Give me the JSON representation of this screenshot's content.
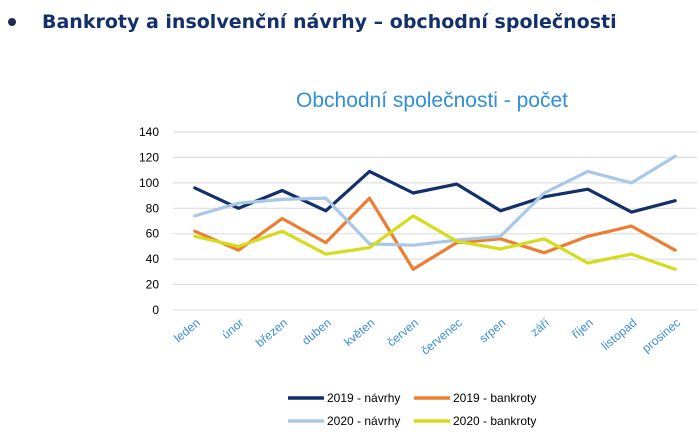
{
  "slide": {
    "heading": "Bankroty a insolvenční návrhy – obchodní společnosti"
  },
  "chart_data": {
    "type": "line",
    "title": "Obchodní společnosti - počet",
    "xlabel": "",
    "ylabel": "",
    "categories": [
      "leden",
      "únor",
      "březen",
      "duben",
      "květen",
      "červen",
      "červenec",
      "srpen",
      "září",
      "říjen",
      "listopad",
      "prosinec"
    ],
    "ylim": [
      0,
      140
    ],
    "yticks": [
      0,
      20,
      40,
      60,
      80,
      100,
      120,
      140
    ],
    "grid": true,
    "legend_position": "bottom",
    "series": [
      {
        "name": "2019 - návrhy",
        "color": "#13306b",
        "values": [
          96,
          80,
          94,
          78,
          109,
          92,
          99,
          78,
          89,
          95,
          77,
          86
        ]
      },
      {
        "name": "2019 - bankroty",
        "color": "#ed7d31",
        "values": [
          62,
          47,
          72,
          53,
          88,
          32,
          53,
          56,
          45,
          58,
          66,
          47
        ]
      },
      {
        "name": "2020 - návrhy",
        "color": "#a9c8e8",
        "values": [
          74,
          84,
          87,
          88,
          52,
          51,
          55,
          58,
          92,
          109,
          100,
          121
        ]
      },
      {
        "name": "2020 - bankroty",
        "color": "#d4dc1c",
        "values": [
          58,
          50,
          62,
          44,
          49,
          74,
          54,
          48,
          56,
          37,
          44,
          32
        ]
      }
    ]
  }
}
